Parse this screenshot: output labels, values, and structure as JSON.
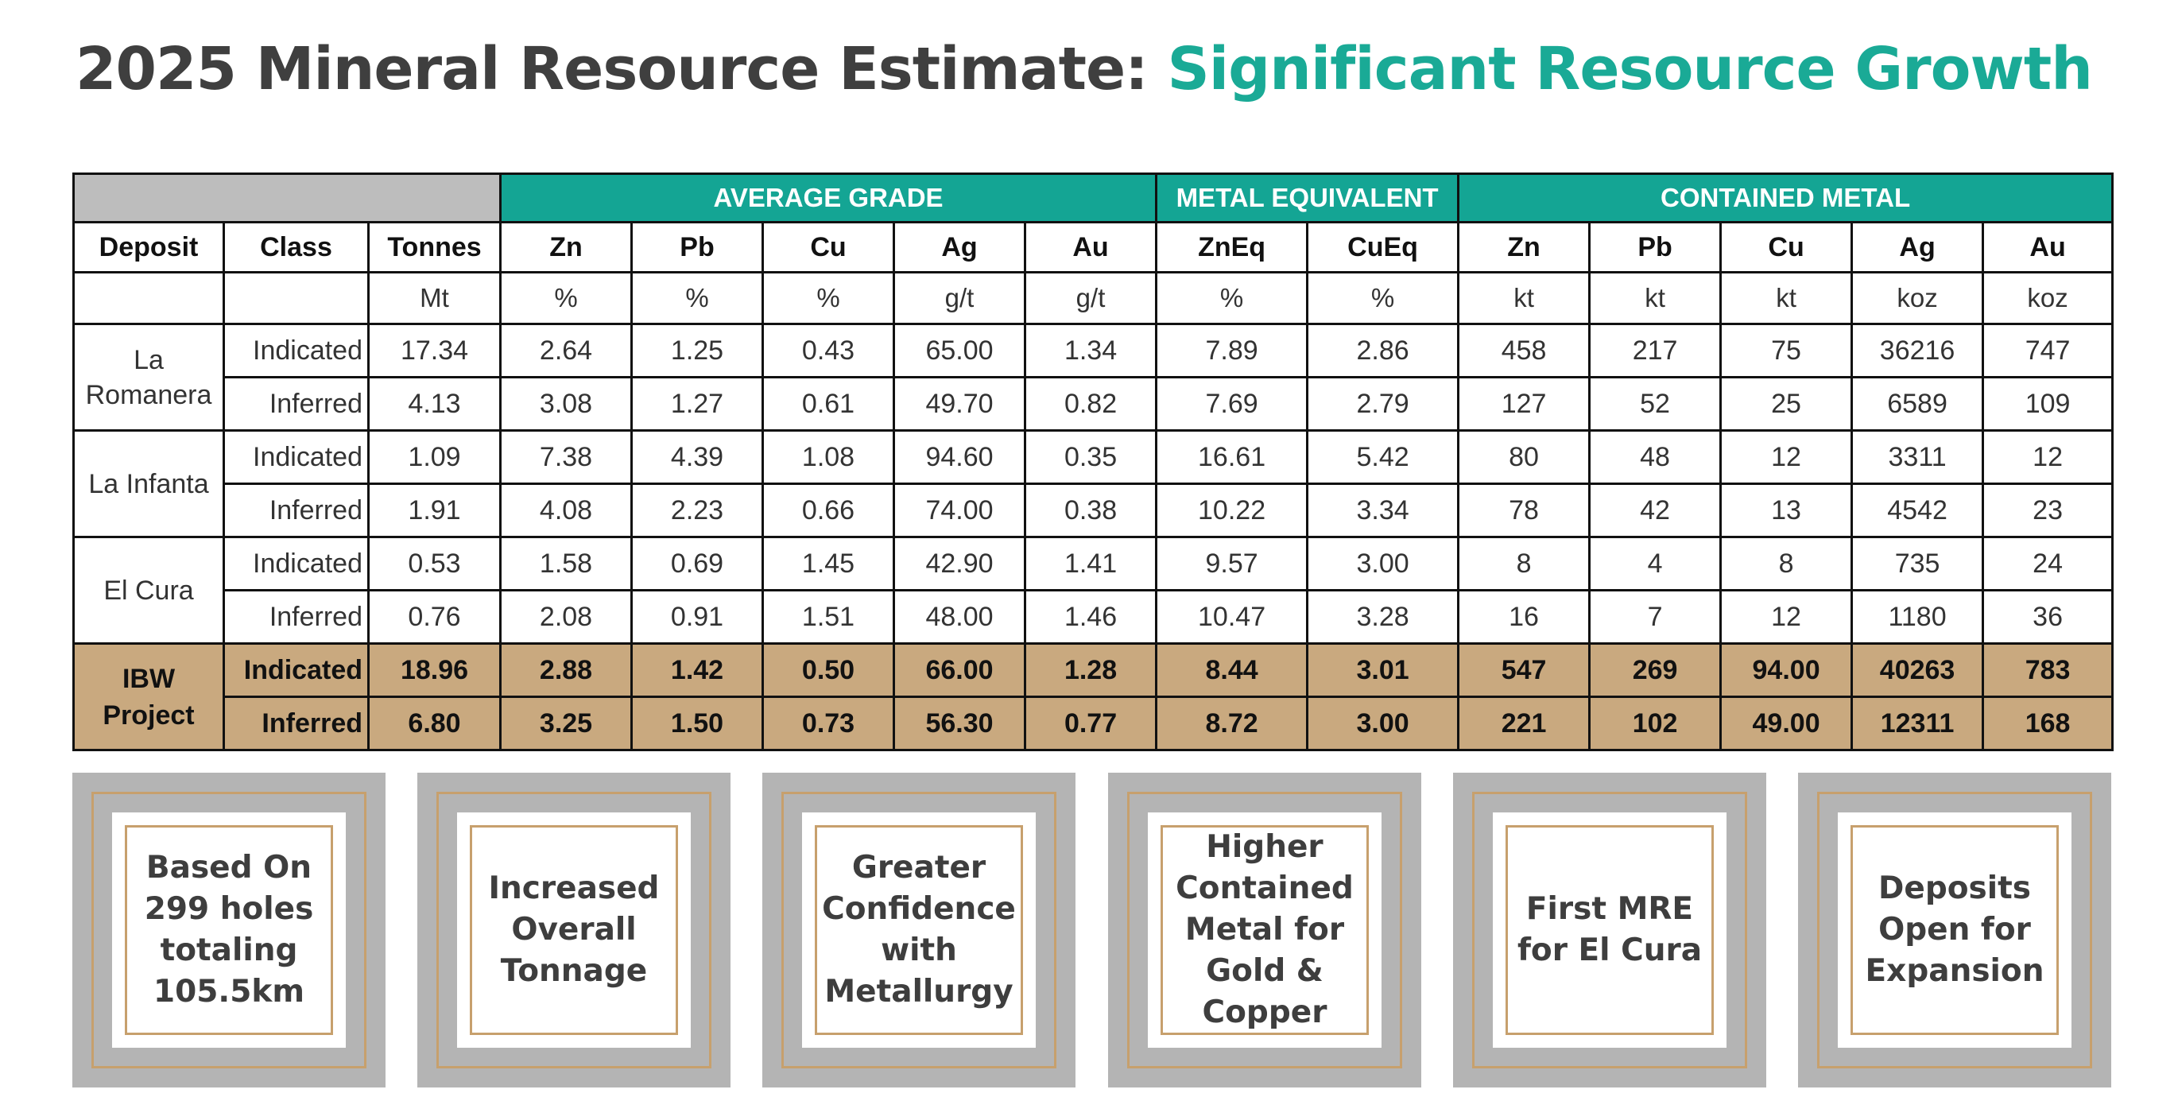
{
  "title": {
    "main": "2025 Mineral Resource Estimate:",
    "accent": "Significant Resource Growth"
  },
  "colors": {
    "accent": "#1aaa96",
    "group_header_bg": "#14a594",
    "total_row_bg": "#c9a97f",
    "card_bg": "#b4b4b4",
    "card_border": "#c7a06d"
  },
  "table": {
    "groups": {
      "average_grade": "AVERAGE GRADE",
      "metal_equivalent": "METAL EQUIVALENT",
      "contained_metal": "CONTAINED METAL"
    },
    "columns": [
      "Deposit",
      "Class",
      "Tonnes",
      "Zn",
      "Pb",
      "Cu",
      "Ag",
      "Au",
      "ZnEq",
      "CuEq",
      "Zn",
      "Pb",
      "Cu",
      "Ag",
      "Au"
    ],
    "units": [
      "",
      "",
      "Mt",
      "%",
      "%",
      "%",
      "g/t",
      "g/t",
      "%",
      "%",
      "kt",
      "kt",
      "kt",
      "koz",
      "koz"
    ],
    "deposits": [
      {
        "name": "La Romanera",
        "rows": [
          [
            "Indicated",
            "17.34",
            "2.64",
            "1.25",
            "0.43",
            "65.00",
            "1.34",
            "7.89",
            "2.86",
            "458",
            "217",
            "75",
            "36216",
            "747"
          ],
          [
            "Inferred",
            "4.13",
            "3.08",
            "1.27",
            "0.61",
            "49.70",
            "0.82",
            "7.69",
            "2.79",
            "127",
            "52",
            "25",
            "6589",
            "109"
          ]
        ]
      },
      {
        "name": "La Infanta",
        "rows": [
          [
            "Indicated",
            "1.09",
            "7.38",
            "4.39",
            "1.08",
            "94.60",
            "0.35",
            "16.61",
            "5.42",
            "80",
            "48",
            "12",
            "3311",
            "12"
          ],
          [
            "Inferred",
            "1.91",
            "4.08",
            "2.23",
            "0.66",
            "74.00",
            "0.38",
            "10.22",
            "3.34",
            "78",
            "42",
            "13",
            "4542",
            "23"
          ]
        ]
      },
      {
        "name": "El Cura",
        "rows": [
          [
            "Indicated",
            "0.53",
            "1.58",
            "0.69",
            "1.45",
            "42.90",
            "1.41",
            "9.57",
            "3.00",
            "8",
            "4",
            "8",
            "735",
            "24"
          ],
          [
            "Inferred",
            "0.76",
            "2.08",
            "0.91",
            "1.51",
            "48.00",
            "1.46",
            "10.47",
            "3.28",
            "16",
            "7",
            "12",
            "1180",
            "36"
          ]
        ]
      }
    ],
    "total": {
      "name": "IBW Project",
      "rows": [
        [
          "Indicated",
          "18.96",
          "2.88",
          "1.42",
          "0.50",
          "66.00",
          "1.28",
          "8.44",
          "3.01",
          "547",
          "269",
          "94.00",
          "40263",
          "783"
        ],
        [
          "Inferred",
          "6.80",
          "3.25",
          "1.50",
          "0.73",
          "56.30",
          "0.77",
          "8.72",
          "3.00",
          "221",
          "102",
          "49.00",
          "12311",
          "168"
        ]
      ]
    }
  },
  "cards": [
    "Based On\n299 holes\ntotaling\n105.5km",
    "Increased\nOverall\nTonnage",
    "Greater\nConfidence\nwith\nMetallurgy",
    "Higher\nContained\nMetal for\nGold &\nCopper",
    "First MRE\nfor El Cura",
    "Deposits\nOpen for\nExpansion"
  ]
}
